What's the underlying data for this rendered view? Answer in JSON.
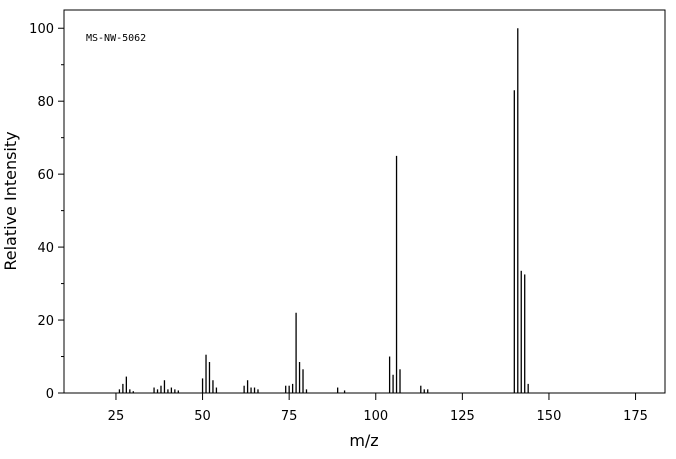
{
  "chart_data": {
    "type": "stem",
    "annotation": "MS-NW-5062",
    "x_label": "m/z",
    "y_label": "Relative Intensity",
    "x": [
      26,
      27,
      28,
      29,
      30,
      36,
      37,
      38,
      39,
      40,
      41,
      42,
      43,
      50,
      51,
      52,
      53,
      54,
      62,
      63,
      64,
      65,
      66,
      74,
      75,
      76,
      77,
      78,
      79,
      80,
      89,
      91,
      104,
      105,
      106,
      107,
      113,
      114,
      115,
      140,
      141,
      142,
      143,
      144
    ],
    "values": [
      1,
      2.5,
      4.5,
      1,
      0.5,
      1.5,
      1,
      2,
      3.5,
      1,
      1.5,
      1,
      0.7,
      4,
      10.5,
      8.5,
      3.5,
      1.5,
      2,
      3.5,
      1.5,
      1.5,
      1,
      2,
      2,
      2.5,
      22,
      8.5,
      6.5,
      1,
      1.5,
      0.7,
      10,
      5,
      65,
      6.5,
      2,
      1,
      1,
      83,
      100,
      33.5,
      32.5,
      2.5
    ],
    "color": "#000000",
    "xlim": [
      10,
      183.5
    ],
    "ylim": [
      0,
      105
    ],
    "xticks": [
      25,
      50,
      75,
      100,
      125,
      150,
      175
    ],
    "yticks": [
      0,
      20,
      40,
      60,
      80,
      100
    ],
    "yminorticks": [
      10,
      30,
      50,
      70,
      90
    ]
  }
}
